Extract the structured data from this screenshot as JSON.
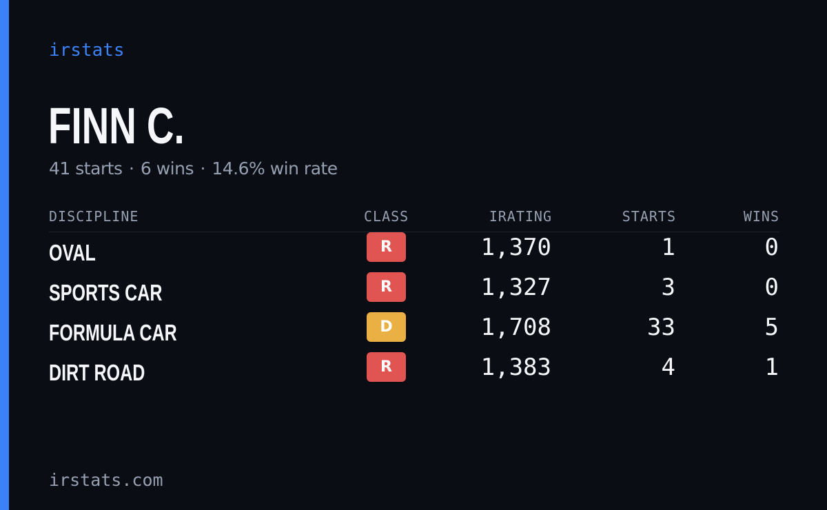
{
  "brand": "irstats",
  "driver": {
    "name": "FINN C.",
    "starts_text": "41 starts",
    "wins_text": "6 wins",
    "win_rate_text": "14.6% win rate",
    "separator": "·"
  },
  "table": {
    "headers": {
      "discipline": "DISCIPLINE",
      "class": "CLASS",
      "irating": "IRATING",
      "starts": "STARTS",
      "wins": "WINS"
    },
    "rows": [
      {
        "discipline": "OVAL",
        "class": "R",
        "class_color": "#e05552",
        "irating": "1,370",
        "starts": "1",
        "wins": "0"
      },
      {
        "discipline": "SPORTS CAR",
        "class": "R",
        "class_color": "#e05552",
        "irating": "1,327",
        "starts": "3",
        "wins": "0"
      },
      {
        "discipline": "FORMULA CAR",
        "class": "D",
        "class_color": "#ebb043",
        "irating": "1,708",
        "starts": "33",
        "wins": "5"
      },
      {
        "discipline": "DIRT ROAD",
        "class": "R",
        "class_color": "#e05552",
        "irating": "1,383",
        "starts": "4",
        "wins": "1"
      }
    ]
  },
  "footer": "irstats.com",
  "colors": {
    "background": "#0a0d14",
    "accent": "#3b82f6",
    "muted_text": "#97a0b1",
    "class_r": "#e05552",
    "class_d": "#ebb043"
  }
}
